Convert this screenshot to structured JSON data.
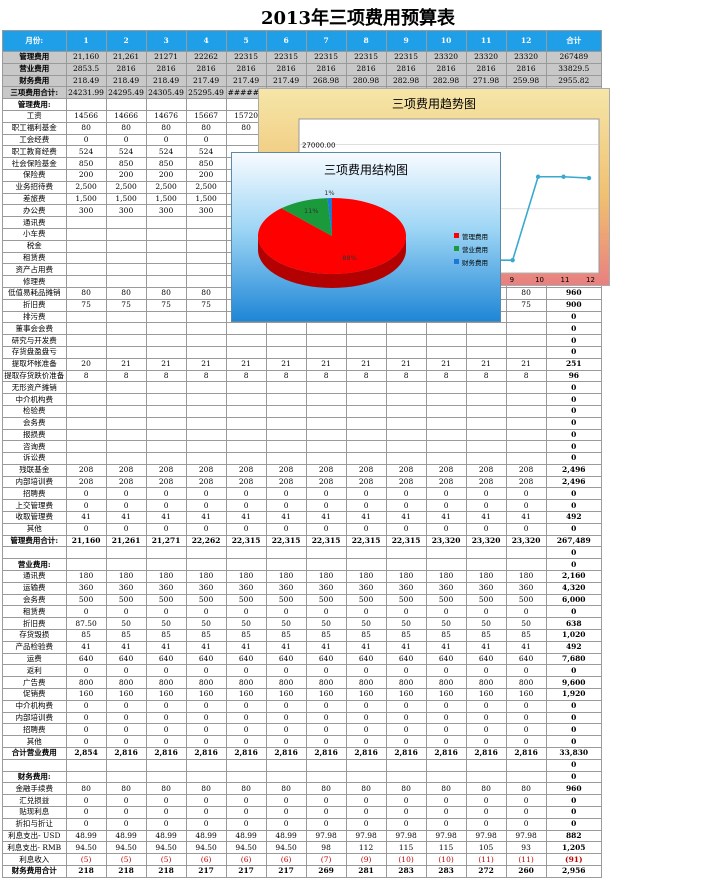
{
  "title": "2013年三项费用预算表",
  "header": [
    "月份:",
    "1",
    "2",
    "3",
    "4",
    "5",
    "6",
    "7",
    "8",
    "9",
    "10",
    "11",
    "12",
    "合计"
  ],
  "rows": [
    {
      "cls": "grey",
      "cells": [
        "管理费用",
        "21,160",
        "21,261",
        "21271",
        "22262",
        "22315",
        "22315",
        "22315",
        "22315",
        "22315",
        "23320",
        "23320",
        "23320",
        "267489"
      ]
    },
    {
      "cls": "grey",
      "cells": [
        "营业费用",
        "2853.5",
        "2816",
        "2816",
        "2816",
        "2816",
        "2816",
        "2816",
        "2816",
        "2816",
        "2816",
        "2816",
        "2816",
        "33829.5"
      ]
    },
    {
      "cls": "grey",
      "cells": [
        "财务费用",
        "218.49",
        "218.49",
        "218.49",
        "217.49",
        "217.49",
        "217.49",
        "268.98",
        "280.98",
        "282.98",
        "282.98",
        "271.98",
        "259.98",
        "2955.82"
      ]
    },
    {
      "cls": "grey",
      "cells": [
        "三项费用合计:",
        "24231.99",
        "24295.49",
        "24305.49",
        "25295.49",
        "########",
        "25348.49",
        "",
        "",
        "",
        "",
        "",
        "",
        ""
      ]
    },
    {
      "cls": "sub",
      "cells": [
        "管理费用:",
        "",
        "",
        "",
        "",
        "",
        "",
        "",
        "",
        "",
        "",
        "",
        "",
        ""
      ]
    },
    {
      "cls": "",
      "cells": [
        "工资",
        "14566",
        "14666",
        "14676",
        "15667",
        "15720",
        "15720",
        "",
        "",
        "",
        "",
        "",
        "",
        ""
      ]
    },
    {
      "cls": "",
      "cells": [
        "职工福利基金",
        "80",
        "80",
        "80",
        "80",
        "80",
        "",
        "",
        "",
        "",
        "",
        "",
        "",
        ""
      ]
    },
    {
      "cls": "",
      "cells": [
        "工会经费",
        "0",
        "0",
        "0",
        "0",
        "",
        "",
        "",
        "",
        "",
        "",
        "",
        "",
        ""
      ]
    },
    {
      "cls": "",
      "cells": [
        "职工教育经费",
        "524",
        "524",
        "524",
        "524",
        "",
        "",
        "",
        "",
        "",
        "",
        "",
        "",
        ""
      ]
    },
    {
      "cls": "",
      "cells": [
        "社会保险基金",
        "850",
        "850",
        "850",
        "850",
        "",
        "",
        "",
        "",
        "",
        "",
        "",
        "",
        ""
      ]
    },
    {
      "cls": "",
      "cells": [
        "保险费",
        "200",
        "200",
        "200",
        "200",
        "",
        "",
        "",
        "",
        "",
        "",
        "",
        "",
        ""
      ]
    },
    {
      "cls": "",
      "cells": [
        "业务招待费",
        "2,500",
        "2,500",
        "2,500",
        "2,500",
        "",
        "",
        "",
        "",
        "",
        "",
        "",
        "",
        ""
      ]
    },
    {
      "cls": "",
      "cells": [
        "差旅费",
        "1,500",
        "1,500",
        "1,500",
        "1,500",
        "",
        "",
        "",
        "",
        "",
        "",
        "",
        "",
        ""
      ]
    },
    {
      "cls": "",
      "cells": [
        "办公费",
        "300",
        "300",
        "300",
        "300",
        "",
        "",
        "",
        "",
        "",
        "",
        "",
        "",
        ""
      ]
    },
    {
      "cls": "",
      "cells": [
        "通讯费",
        "",
        "",
        "",
        "",
        "",
        "",
        "",
        "",
        "",
        "",
        "",
        "",
        ""
      ]
    },
    {
      "cls": "",
      "cells": [
        "小车费",
        "",
        "",
        "",
        "",
        "",
        "",
        "",
        "",
        "",
        "",
        "",
        "",
        ""
      ]
    },
    {
      "cls": "",
      "cells": [
        "税金",
        "",
        "",
        "",
        "",
        "",
        "",
        "",
        "",
        "",
        "",
        "",
        "",
        ""
      ]
    },
    {
      "cls": "",
      "cells": [
        "租赁费",
        "",
        "",
        "",
        "",
        "",
        "",
        "",
        "",
        "",
        "",
        "",
        "",
        ""
      ]
    },
    {
      "cls": "",
      "cells": [
        "资产占用费",
        "",
        "",
        "",
        "",
        "",
        "",
        "",
        "",
        "",
        "",
        "",
        "",
        ""
      ]
    },
    {
      "cls": "",
      "cells": [
        "修理费",
        "",
        "",
        "",
        "",
        "",
        "",
        "",
        "",
        "",
        "",
        "",
        "",
        ""
      ]
    },
    {
      "cls": "",
      "cells": [
        "低值易耗品摊销",
        "80",
        "80",
        "80",
        "80",
        "",
        "",
        "",
        "",
        "",
        "",
        "",
        "80",
        "960"
      ]
    },
    {
      "cls": "",
      "cells": [
        "折旧费",
        "75",
        "75",
        "75",
        "75",
        "",
        "",
        "",
        "",
        "",
        "",
        "",
        "75",
        "900"
      ]
    },
    {
      "cls": "",
      "cells": [
        "排污费",
        "",
        "",
        "",
        "",
        "",
        "",
        "",
        "",
        "",
        "",
        "",
        "",
        "0"
      ]
    },
    {
      "cls": "",
      "cells": [
        "董事会会费",
        "",
        "",
        "",
        "",
        "",
        "",
        "",
        "",
        "",
        "",
        "",
        "",
        "0"
      ]
    },
    {
      "cls": "",
      "cells": [
        "研究与开发费",
        "",
        "",
        "",
        "",
        "",
        "",
        "",
        "",
        "",
        "",
        "",
        "",
        "0"
      ]
    },
    {
      "cls": "",
      "cells": [
        "存货盘盈盘亏",
        "",
        "",
        "",
        "",
        "",
        "",
        "",
        "",
        "",
        "",
        "",
        "",
        "0"
      ]
    },
    {
      "cls": "",
      "cells": [
        "提取坏帐准备",
        "20",
        "21",
        "21",
        "21",
        "21",
        "21",
        "21",
        "21",
        "21",
        "21",
        "21",
        "21",
        "251"
      ]
    },
    {
      "cls": "",
      "cells": [
        "提取存货跌价准备",
        "8",
        "8",
        "8",
        "8",
        "8",
        "8",
        "8",
        "8",
        "8",
        "8",
        "8",
        "8",
        "96"
      ]
    },
    {
      "cls": "",
      "cells": [
        "无形资产摊销",
        "",
        "",
        "",
        "",
        "",
        "",
        "",
        "",
        "",
        "",
        "",
        "",
        "0"
      ]
    },
    {
      "cls": "",
      "cells": [
        "中介机构费",
        "",
        "",
        "",
        "",
        "",
        "",
        "",
        "",
        "",
        "",
        "",
        "",
        "0"
      ]
    },
    {
      "cls": "",
      "cells": [
        "检验费",
        "",
        "",
        "",
        "",
        "",
        "",
        "",
        "",
        "",
        "",
        "",
        "",
        "0"
      ]
    },
    {
      "cls": "",
      "cells": [
        "会务费",
        "",
        "",
        "",
        "",
        "",
        "",
        "",
        "",
        "",
        "",
        "",
        "",
        "0"
      ]
    },
    {
      "cls": "",
      "cells": [
        "报损费",
        "",
        "",
        "",
        "",
        "",
        "",
        "",
        "",
        "",
        "",
        "",
        "",
        "0"
      ]
    },
    {
      "cls": "",
      "cells": [
        "咨询费",
        "",
        "",
        "",
        "",
        "",
        "",
        "",
        "",
        "",
        "",
        "",
        "",
        "0"
      ]
    },
    {
      "cls": "",
      "cells": [
        "诉讼费",
        "",
        "",
        "",
        "",
        "",
        "",
        "",
        "",
        "",
        "",
        "",
        "",
        "0"
      ]
    },
    {
      "cls": "",
      "cells": [
        "残联基金",
        "208",
        "208",
        "208",
        "208",
        "208",
        "208",
        "208",
        "208",
        "208",
        "208",
        "208",
        "208",
        "2,496"
      ]
    },
    {
      "cls": "",
      "cells": [
        "内部培训费",
        "208",
        "208",
        "208",
        "208",
        "208",
        "208",
        "208",
        "208",
        "208",
        "208",
        "208",
        "208",
        "2,496"
      ]
    },
    {
      "cls": "",
      "cells": [
        "招聘费",
        "0",
        "0",
        "0",
        "0",
        "0",
        "0",
        "0",
        "0",
        "0",
        "0",
        "0",
        "0",
        "0"
      ]
    },
    {
      "cls": "",
      "cells": [
        "上交管理费",
        "0",
        "0",
        "0",
        "0",
        "0",
        "0",
        "0",
        "0",
        "0",
        "0",
        "0",
        "0",
        "0"
      ]
    },
    {
      "cls": "",
      "cells": [
        "收取管理费",
        "41",
        "41",
        "41",
        "41",
        "41",
        "41",
        "41",
        "41",
        "41",
        "41",
        "41",
        "41",
        "492"
      ]
    },
    {
      "cls": "",
      "cells": [
        "其他",
        "0",
        "0",
        "0",
        "0",
        "0",
        "0",
        "0",
        "0",
        "0",
        "0",
        "0",
        "0",
        "0"
      ]
    },
    {
      "cls": "sub",
      "cells": [
        "管理费用合计:",
        "21,160",
        "21,261",
        "21,271",
        "22,262",
        "22,315",
        "22,315",
        "22,315",
        "22,315",
        "22,315",
        "23,320",
        "23,320",
        "23,320",
        "267,489"
      ]
    },
    {
      "cls": "",
      "cells": [
        "",
        "",
        "",
        "",
        "",
        "",
        "",
        "",
        "",
        "",
        "",
        "",
        "",
        "0"
      ]
    },
    {
      "cls": "sub",
      "cells": [
        "营业费用:",
        "",
        "",
        "",
        "",
        "",
        "",
        "",
        "",
        "",
        "",
        "",
        "",
        "0"
      ]
    },
    {
      "cls": "",
      "cells": [
        "通讯费",
        "180",
        "180",
        "180",
        "180",
        "180",
        "180",
        "180",
        "180",
        "180",
        "180",
        "180",
        "180",
        "2,160"
      ]
    },
    {
      "cls": "",
      "cells": [
        "运输费",
        "360",
        "360",
        "360",
        "360",
        "360",
        "360",
        "360",
        "360",
        "360",
        "360",
        "360",
        "360",
        "4,320"
      ]
    },
    {
      "cls": "",
      "cells": [
        "会务费",
        "500",
        "500",
        "500",
        "500",
        "500",
        "500",
        "500",
        "500",
        "500",
        "500",
        "500",
        "500",
        "6,000"
      ]
    },
    {
      "cls": "",
      "cells": [
        "租赁费",
        "0",
        "0",
        "0",
        "0",
        "0",
        "0",
        "0",
        "0",
        "0",
        "0",
        "0",
        "0",
        "0"
      ]
    },
    {
      "cls": "",
      "cells": [
        "折旧费",
        "87.50",
        "50",
        "50",
        "50",
        "50",
        "50",
        "50",
        "50",
        "50",
        "50",
        "50",
        "50",
        "638"
      ]
    },
    {
      "cls": "",
      "cells": [
        "存货毁损",
        "85",
        "85",
        "85",
        "85",
        "85",
        "85",
        "85",
        "85",
        "85",
        "85",
        "85",
        "85",
        "1,020"
      ]
    },
    {
      "cls": "",
      "cells": [
        "产品检验费",
        "41",
        "41",
        "41",
        "41",
        "41",
        "41",
        "41",
        "41",
        "41",
        "41",
        "41",
        "41",
        "492"
      ]
    },
    {
      "cls": "",
      "cells": [
        "运费",
        "640",
        "640",
        "640",
        "640",
        "640",
        "640",
        "640",
        "640",
        "640",
        "640",
        "640",
        "640",
        "7,680"
      ]
    },
    {
      "cls": "",
      "cells": [
        "返利",
        "0",
        "0",
        "0",
        "0",
        "0",
        "0",
        "0",
        "0",
        "0",
        "0",
        "0",
        "0",
        "0"
      ]
    },
    {
      "cls": "",
      "cells": [
        "广告费",
        "800",
        "800",
        "800",
        "800",
        "800",
        "800",
        "800",
        "800",
        "800",
        "800",
        "800",
        "800",
        "9,600"
      ]
    },
    {
      "cls": "",
      "cells": [
        "促销费",
        "160",
        "160",
        "160",
        "160",
        "160",
        "160",
        "160",
        "160",
        "160",
        "160",
        "160",
        "160",
        "1,920"
      ]
    },
    {
      "cls": "",
      "cells": [
        "中介机构费",
        "0",
        "0",
        "0",
        "0",
        "0",
        "0",
        "0",
        "0",
        "0",
        "0",
        "0",
        "0",
        "0"
      ]
    },
    {
      "cls": "",
      "cells": [
        "内部培训费",
        "0",
        "0",
        "0",
        "0",
        "0",
        "0",
        "0",
        "0",
        "0",
        "0",
        "0",
        "0",
        "0"
      ]
    },
    {
      "cls": "",
      "cells": [
        "招聘费",
        "0",
        "0",
        "0",
        "0",
        "0",
        "0",
        "0",
        "0",
        "0",
        "0",
        "0",
        "0",
        "0"
      ]
    },
    {
      "cls": "",
      "cells": [
        "其他",
        "0",
        "0",
        "0",
        "0",
        "0",
        "0",
        "0",
        "0",
        "0",
        "0",
        "0",
        "0",
        "0"
      ]
    },
    {
      "cls": "sub",
      "cells": [
        "合计营业费用",
        "2,854",
        "2,816",
        "2,816",
        "2,816",
        "2,816",
        "2,816",
        "2,816",
        "2,816",
        "2,816",
        "2,816",
        "2,816",
        "2,816",
        "33,830"
      ]
    },
    {
      "cls": "",
      "cells": [
        "",
        "",
        "",
        "",
        "",
        "",
        "",
        "",
        "",
        "",
        "",
        "",
        "",
        "0"
      ]
    },
    {
      "cls": "sub",
      "cells": [
        "财务费用:",
        "",
        "",
        "",
        "",
        "",
        "",
        "",
        "",
        "",
        "",
        "",
        "",
        "0"
      ]
    },
    {
      "cls": "",
      "cells": [
        "金融手续费",
        "80",
        "80",
        "80",
        "80",
        "80",
        "80",
        "80",
        "80",
        "80",
        "80",
        "80",
        "80",
        "960"
      ]
    },
    {
      "cls": "",
      "cells": [
        "汇兑损益",
        "0",
        "0",
        "0",
        "0",
        "0",
        "0",
        "0",
        "0",
        "0",
        "0",
        "0",
        "0",
        "0"
      ]
    },
    {
      "cls": "",
      "cells": [
        "贴现利息",
        "0",
        "0",
        "0",
        "0",
        "0",
        "0",
        "0",
        "0",
        "0",
        "0",
        "0",
        "0",
        "0"
      ]
    },
    {
      "cls": "",
      "cells": [
        "折扣与折让",
        "0",
        "0",
        "0",
        "0",
        "0",
        "0",
        "0",
        "0",
        "0",
        "0",
        "0",
        "0",
        "0"
      ]
    },
    {
      "cls": "",
      "cells": [
        "利息支出- USD",
        "48.99",
        "48.99",
        "48.99",
        "48.99",
        "48.99",
        "48.99",
        "97.98",
        "97.98",
        "97.98",
        "97.98",
        "97.98",
        "97.98",
        "882"
      ]
    },
    {
      "cls": "",
      "cells": [
        "利息支出- RMB",
        "94.50",
        "94.50",
        "94.50",
        "94.50",
        "94.50",
        "94.50",
        "98",
        "112",
        "115",
        "115",
        "105",
        "93",
        "1,205"
      ]
    },
    {
      "cls": "red",
      "cells": [
        "利息收入",
        "(5)",
        "(5)",
        "(5)",
        "(6)",
        "(6)",
        "(6)",
        "(7)",
        "(9)",
        "(10)",
        "(10)",
        "(11)",
        "(11)",
        "(91)"
      ]
    },
    {
      "cls": "sub",
      "cells": [
        "财务费用合计",
        "218",
        "218",
        "218",
        "217",
        "217",
        "217",
        "269",
        "281",
        "283",
        "283",
        "272",
        "260",
        "2,956"
      ]
    }
  ],
  "trend_chart": {
    "title": "三项费用趋势图",
    "y_ticks": [
      "27000.00",
      "26500.00"
    ]
  },
  "pie_chart": {
    "title": "三项费用结构图",
    "legend": [
      "管理费用",
      "营业费用",
      "财务费用"
    ],
    "colors": [
      "#ff0000",
      "#1a9a3a",
      "#1f78d8"
    ]
  },
  "chart_data": [
    {
      "type": "line",
      "title": "三项费用趋势图",
      "x": [
        8,
        9,
        10,
        11,
        12
      ],
      "y": [
        26100,
        26100,
        26750,
        26750,
        26740
      ],
      "ylim": [
        26000,
        27200
      ]
    },
    {
      "type": "pie",
      "title": "三项费用结构图",
      "categories": [
        "管理费用",
        "营业费用",
        "财务费用"
      ],
      "values": [
        88,
        11,
        1
      ],
      "labels": [
        "88%",
        "11%",
        "1%"
      ]
    }
  ]
}
